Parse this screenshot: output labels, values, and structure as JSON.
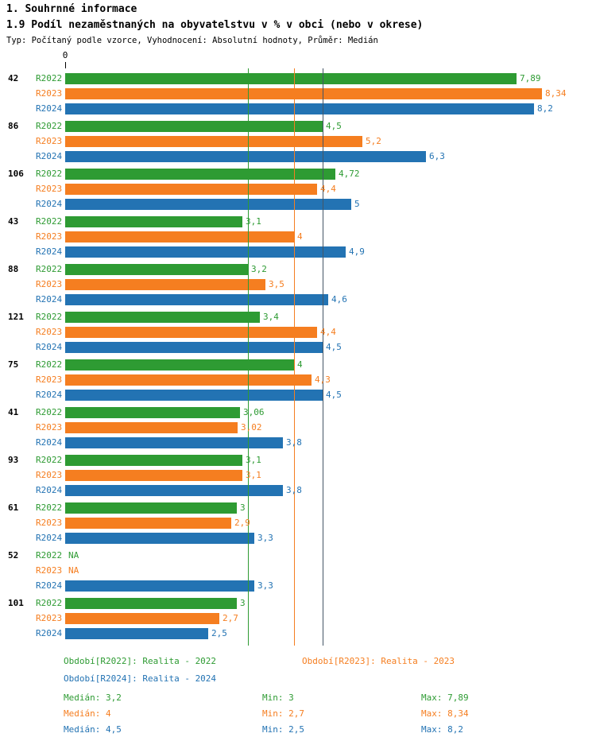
{
  "header": {
    "title1": "1. Souhrnné informace",
    "title2": "1.9 Podíl nezaměstnaných na obyvatelstvu v % v obci (nebo v okrese)",
    "subtitle": "Typ: Počítaný podle vzorce, Vyhodnocení: Absolutní hodnoty, Průměr: Medián"
  },
  "chart_data": {
    "type": "bar",
    "orientation": "horizontal",
    "title": "1.9 Podíl nezaměstnaných na obyvatelstvu v % v obci (nebo v okrese)",
    "xlabel": "",
    "ylabel": "",
    "axis": {
      "tick_labels": [
        "0"
      ],
      "xlim": [
        0,
        8.6
      ],
      "grid": false
    },
    "series_labels": [
      "R2022",
      "R2023",
      "R2024"
    ],
    "colors": {
      "R2022": "#2E9B33",
      "R2023": "#F57E20",
      "R2024": "#2373B3"
    },
    "median_lines": [
      {
        "value": 3.2,
        "color": "#2E9B33"
      },
      {
        "value": 4,
        "color": "#F57E20"
      },
      {
        "value": 4.5,
        "color": "#445566"
      }
    ],
    "groups": [
      {
        "label": "42",
        "bars": [
          {
            "series": "R2022",
            "value": 7.89,
            "display": "7,89"
          },
          {
            "series": "R2023",
            "value": 8.34,
            "display": "8,34"
          },
          {
            "series": "R2024",
            "value": 8.2,
            "display": "8,2"
          }
        ]
      },
      {
        "label": "86",
        "bars": [
          {
            "series": "R2022",
            "value": 4.5,
            "display": "4,5"
          },
          {
            "series": "R2023",
            "value": 5.2,
            "display": "5,2"
          },
          {
            "series": "R2024",
            "value": 6.3,
            "display": "6,3"
          }
        ]
      },
      {
        "label": "106",
        "bars": [
          {
            "series": "R2022",
            "value": 4.72,
            "display": "4,72"
          },
          {
            "series": "R2023",
            "value": 4.4,
            "display": "4,4"
          },
          {
            "series": "R2024",
            "value": 5,
            "display": "5"
          }
        ]
      },
      {
        "label": "43",
        "bars": [
          {
            "series": "R2022",
            "value": 3.1,
            "display": "3,1"
          },
          {
            "series": "R2023",
            "value": 4,
            "display": "4"
          },
          {
            "series": "R2024",
            "value": 4.9,
            "display": "4,9"
          }
        ]
      },
      {
        "label": "88",
        "bars": [
          {
            "series": "R2022",
            "value": 3.2,
            "display": "3,2"
          },
          {
            "series": "R2023",
            "value": 3.5,
            "display": "3,5"
          },
          {
            "series": "R2024",
            "value": 4.6,
            "display": "4,6"
          }
        ]
      },
      {
        "label": "121",
        "bars": [
          {
            "series": "R2022",
            "value": 3.4,
            "display": "3,4"
          },
          {
            "series": "R2023",
            "value": 4.4,
            "display": "4,4"
          },
          {
            "series": "R2024",
            "value": 4.5,
            "display": "4,5"
          }
        ]
      },
      {
        "label": "75",
        "bars": [
          {
            "series": "R2022",
            "value": 4,
            "display": "4"
          },
          {
            "series": "R2023",
            "value": 4.3,
            "display": "4,3"
          },
          {
            "series": "R2024",
            "value": 4.5,
            "display": "4,5"
          }
        ]
      },
      {
        "label": "41",
        "bars": [
          {
            "series": "R2022",
            "value": 3.06,
            "display": "3,06"
          },
          {
            "series": "R2023",
            "value": 3.02,
            "display": "3,02"
          },
          {
            "series": "R2024",
            "value": 3.8,
            "display": "3,8"
          }
        ]
      },
      {
        "label": "93",
        "bars": [
          {
            "series": "R2022",
            "value": 3.1,
            "display": "3,1"
          },
          {
            "series": "R2023",
            "value": 3.1,
            "display": "3,1"
          },
          {
            "series": "R2024",
            "value": 3.8,
            "display": "3,8"
          }
        ]
      },
      {
        "label": "61",
        "bars": [
          {
            "series": "R2022",
            "value": 3,
            "display": "3"
          },
          {
            "series": "R2023",
            "value": 2.9,
            "display": "2,9"
          },
          {
            "series": "R2024",
            "value": 3.3,
            "display": "3,3"
          }
        ]
      },
      {
        "label": "52",
        "bars": [
          {
            "series": "R2022",
            "value": null,
            "display": "NA"
          },
          {
            "series": "R2023",
            "value": null,
            "display": "NA"
          },
          {
            "series": "R2024",
            "value": 3.3,
            "display": "3,3"
          }
        ]
      },
      {
        "label": "101",
        "bars": [
          {
            "series": "R2022",
            "value": 3,
            "display": "3"
          },
          {
            "series": "R2023",
            "value": 2.7,
            "display": "2,7"
          },
          {
            "series": "R2024",
            "value": 2.5,
            "display": "2,5"
          }
        ]
      }
    ],
    "legend_position": "bottom"
  },
  "legend": [
    {
      "label": "Období[R2022]: Realita - 2022",
      "color": "#2E9B33"
    },
    {
      "label": "Období[R2023]: Realita - 2023",
      "color": "#F57E20"
    },
    {
      "label": "Období[R2024]: Realita - 2024",
      "color": "#2373B3"
    }
  ],
  "stats": [
    {
      "median": "Medián: 3,2",
      "min": "Min: 3",
      "max": "Max: 7,89",
      "color": "#2E9B33"
    },
    {
      "median": "Medián: 4",
      "min": "Min: 2,7",
      "max": "Max: 8,34",
      "color": "#F57E20"
    },
    {
      "median": "Medián: 4,5",
      "min": "Min: 2,5",
      "max": "Max: 8,2",
      "color": "#2373B3"
    }
  ]
}
